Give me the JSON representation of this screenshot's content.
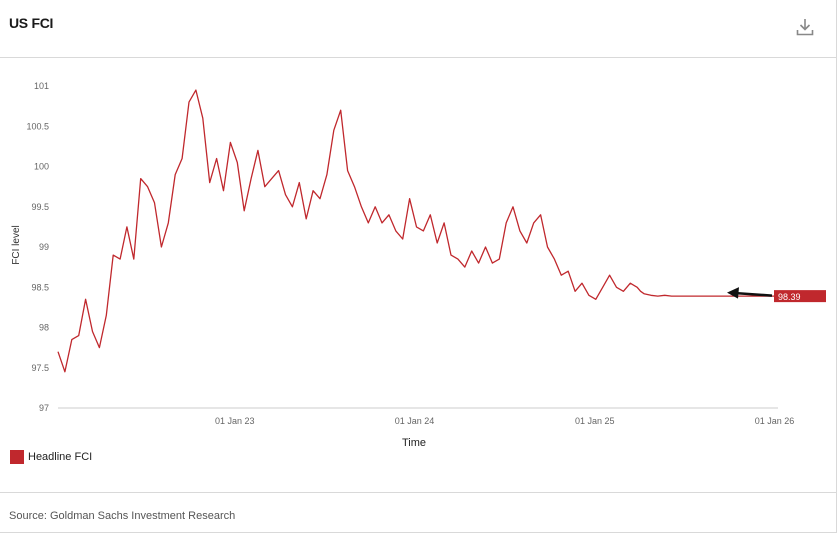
{
  "title": "US FCI",
  "download_icon": "download-icon",
  "source": "Source: Goldman Sachs Investment Research",
  "colors": {
    "series": "#c0282d",
    "axis": "#cccccc",
    "tick_text": "#666666",
    "arrow": "#111111"
  },
  "chart_data": {
    "type": "line",
    "title": "",
    "xlabel": "Time",
    "ylabel": "FCI level",
    "ylim": [
      97,
      101.1
    ],
    "yticks": [
      "97",
      "97.5",
      "98",
      "98.5",
      "99",
      "99.5",
      "100",
      "100.5",
      "101"
    ],
    "xticks": [
      {
        "label": "01 Jan 23",
        "x": "2023-01-01"
      },
      {
        "label": "01 Jan 24",
        "x": "2024-01-01"
      },
      {
        "label": "01 Jan 25",
        "x": "2025-01-01"
      },
      {
        "label": "01 Jan 26",
        "x": "2026-01-01"
      }
    ],
    "xlim": [
      "2022-01-07",
      "2026-01-08"
    ],
    "grid": false,
    "legend_position": "bottom-left",
    "series": [
      {
        "name": "Headline FCI",
        "x": [
          "2022-01-07",
          "2022-01-21",
          "2022-02-04",
          "2022-02-18",
          "2022-03-04",
          "2022-03-18",
          "2022-04-01",
          "2022-04-15",
          "2022-04-29",
          "2022-05-13",
          "2022-05-27",
          "2022-06-10",
          "2022-06-24",
          "2022-07-08",
          "2022-07-22",
          "2022-08-05",
          "2022-08-19",
          "2022-09-02",
          "2022-09-16",
          "2022-09-30",
          "2022-10-14",
          "2022-10-28",
          "2022-11-11",
          "2022-11-25",
          "2022-12-09",
          "2022-12-23",
          "2023-01-06",
          "2023-01-20",
          "2023-02-03",
          "2023-02-17",
          "2023-03-03",
          "2023-03-17",
          "2023-03-31",
          "2023-04-14",
          "2023-04-28",
          "2023-05-12",
          "2023-05-26",
          "2023-06-09",
          "2023-06-23",
          "2023-07-07",
          "2023-07-21",
          "2023-08-04",
          "2023-08-18",
          "2023-09-01",
          "2023-09-15",
          "2023-09-29",
          "2023-10-13",
          "2023-10-27",
          "2023-11-10",
          "2023-11-24",
          "2023-12-08",
          "2023-12-22",
          "2024-01-05",
          "2024-01-19",
          "2024-02-02",
          "2024-02-16",
          "2024-03-01",
          "2024-03-15",
          "2024-03-29",
          "2024-04-12",
          "2024-04-26",
          "2024-05-10",
          "2024-05-24",
          "2024-06-07",
          "2024-06-21",
          "2024-07-05",
          "2024-07-19",
          "2024-08-02",
          "2024-08-16",
          "2024-08-30",
          "2024-09-13",
          "2024-09-27",
          "2024-10-11",
          "2024-10-25",
          "2024-11-08",
          "2024-11-22",
          "2024-12-06",
          "2024-12-20",
          "2025-01-03",
          "2025-01-17",
          "2025-01-31",
          "2025-02-14",
          "2025-02-28",
          "2025-03-14",
          "2025-03-28",
          "2025-04-04",
          "2025-04-11",
          "2025-04-25",
          "2025-05-09",
          "2025-05-23",
          "2025-06-06",
          "2025-06-20",
          "2025-07-04",
          "2025-07-18",
          "2025-08-01",
          "2025-08-15",
          "2025-08-29",
          "2025-09-12",
          "2025-09-26",
          "2025-10-10",
          "2025-10-24",
          "2025-11-07",
          "2025-11-21",
          "2025-12-05",
          "2025-12-19",
          "2026-01-02",
          "2026-01-08"
        ],
        "y": [
          97.7,
          97.45,
          97.85,
          97.9,
          98.35,
          97.95,
          97.75,
          98.15,
          98.9,
          98.85,
          99.25,
          98.85,
          99.85,
          99.75,
          99.55,
          99.0,
          99.3,
          99.9,
          100.1,
          100.8,
          100.95,
          100.6,
          99.8,
          100.1,
          99.7,
          100.3,
          100.05,
          99.45,
          99.85,
          100.2,
          99.75,
          99.85,
          99.95,
          99.65,
          99.5,
          99.8,
          99.35,
          99.7,
          99.6,
          99.9,
          100.45,
          100.7,
          99.95,
          99.75,
          99.5,
          99.3,
          99.5,
          99.3,
          99.4,
          99.2,
          99.1,
          99.6,
          99.25,
          99.2,
          99.4,
          99.05,
          99.3,
          98.9,
          98.85,
          98.75,
          98.95,
          98.8,
          99.0,
          98.8,
          98.85,
          99.3,
          99.5,
          99.2,
          99.05,
          99.3,
          99.4,
          99.0,
          98.85,
          98.65,
          98.7,
          98.45,
          98.55,
          98.4,
          98.35,
          98.5,
          98.65,
          98.5,
          98.45,
          98.55,
          98.5,
          98.45,
          98.42,
          98.4,
          98.39,
          98.4,
          98.39,
          98.39,
          98.39,
          98.39,
          98.39,
          98.39,
          98.39,
          98.39,
          98.39,
          98.39,
          98.39,
          98.39,
          98.39,
          98.39,
          98.39,
          98.39,
          98.39
        ]
      }
    ],
    "last_value_label": "98.39"
  }
}
